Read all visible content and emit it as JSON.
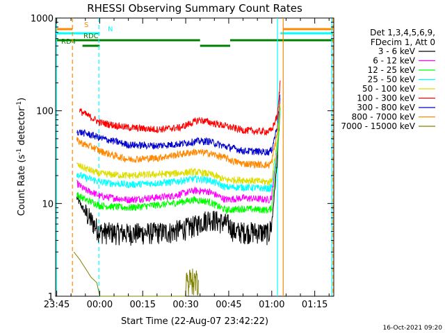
{
  "chart_data": {
    "type": "line",
    "title": "RHESSI Observing Summary Count Rates",
    "xlabel": "Start Time (22-Aug-07 23:42:22)",
    "ylabel_main": "Count Rate (s",
    "ylabel_sup1": "-1",
    "ylabel_mid": " detector",
    "ylabel_sup2": "-1",
    "ylabel_end": ")",
    "yscale": "log",
    "ylim": [
      1,
      1000
    ],
    "xlim_minutes": [
      -15.37,
      81.63
    ],
    "y_ticks": [
      {
        "value": 1,
        "label": "1"
      },
      {
        "value": 10,
        "label": "10"
      },
      {
        "value": 100,
        "label": "100"
      },
      {
        "value": 1000,
        "label": "1000"
      }
    ],
    "x_ticks": [
      {
        "value": -15,
        "label": "23:45"
      },
      {
        "value": 0,
        "label": "00:00"
      },
      {
        "value": 15,
        "label": "00:15"
      },
      {
        "value": 30,
        "label": "00:30"
      },
      {
        "value": 45,
        "label": "00:45"
      },
      {
        "value": 60,
        "label": "01:00"
      },
      {
        "value": 75,
        "label": "01:15"
      }
    ],
    "legend_header": [
      "Det 1,3,4,5,6,9,",
      "FDecim 1, Att 0"
    ],
    "series": [
      {
        "name": "3 - 6 keV",
        "color": "#000000",
        "points": [
          [
            -8,
            11.5
          ],
          [
            -5,
            8
          ],
          [
            -2,
            6
          ],
          [
            0,
            5
          ],
          [
            10,
            4.8
          ],
          [
            25,
            5
          ],
          [
            33,
            5.8
          ],
          [
            38,
            7
          ],
          [
            45,
            6
          ],
          [
            47,
            5
          ],
          [
            55,
            5
          ],
          [
            59,
            4.8
          ],
          [
            60,
            6
          ],
          [
            62,
            30
          ],
          [
            63,
            120
          ]
        ]
      },
      {
        "name": "6 - 12 keV",
        "color": "#ff00ff",
        "points": [
          [
            -8,
            16.5
          ],
          [
            -5,
            14
          ],
          [
            -2,
            13
          ],
          [
            0,
            12
          ],
          [
            10,
            11
          ],
          [
            25,
            12
          ],
          [
            33,
            13.8
          ],
          [
            38,
            13.5
          ],
          [
            44,
            11
          ],
          [
            50,
            11.5
          ],
          [
            59,
            11
          ],
          [
            60,
            12
          ],
          [
            62,
            40
          ],
          [
            63,
            150
          ]
        ]
      },
      {
        "name": "12 - 25 keV",
        "color": "#00ff00",
        "points": [
          [
            -8,
            12.5
          ],
          [
            -5,
            11
          ],
          [
            -2,
            10.2
          ],
          [
            0,
            9.5
          ],
          [
            10,
            9
          ],
          [
            25,
            10
          ],
          [
            33,
            11
          ],
          [
            38,
            10.5
          ],
          [
            44,
            8.5
          ],
          [
            50,
            8.8
          ],
          [
            59,
            8.5
          ],
          [
            60,
            9
          ],
          [
            62,
            35
          ],
          [
            63,
            130
          ]
        ]
      },
      {
        "name": "25 - 50 keV",
        "color": "#00ffff",
        "points": [
          [
            -8,
            21
          ],
          [
            -5,
            19
          ],
          [
            -2,
            18
          ],
          [
            0,
            17
          ],
          [
            10,
            16
          ],
          [
            25,
            17
          ],
          [
            33,
            18.5
          ],
          [
            38,
            18
          ],
          [
            44,
            15
          ],
          [
            50,
            15
          ],
          [
            59,
            14.5
          ],
          [
            60,
            15
          ],
          [
            62,
            45
          ],
          [
            63,
            150
          ]
        ]
      },
      {
        "name": "50 - 100 keV",
        "color": "#dddd00",
        "points": [
          [
            -8,
            26
          ],
          [
            -5,
            24
          ],
          [
            -2,
            22
          ],
          [
            0,
            21
          ],
          [
            10,
            20
          ],
          [
            25,
            21
          ],
          [
            33,
            22
          ],
          [
            38,
            21
          ],
          [
            44,
            18
          ],
          [
            50,
            18
          ],
          [
            59,
            17
          ],
          [
            60,
            18
          ],
          [
            62,
            50
          ],
          [
            63,
            160
          ]
        ]
      },
      {
        "name": "100 - 300 keV",
        "color": "#ff0000",
        "points": [
          [
            -7,
            100
          ],
          [
            -3,
            85
          ],
          [
            0,
            75
          ],
          [
            5,
            70
          ],
          [
            10,
            66
          ],
          [
            20,
            63
          ],
          [
            28,
            66
          ],
          [
            33,
            76
          ],
          [
            34.7,
            80
          ],
          [
            46,
            66
          ],
          [
            50,
            62
          ],
          [
            55,
            60
          ],
          [
            59,
            60
          ],
          [
            60,
            62
          ],
          [
            62,
            90
          ],
          [
            63,
            210
          ]
        ]
      },
      {
        "name": "300 - 800 keV",
        "color": "#0000cc",
        "points": [
          [
            -8,
            60
          ],
          [
            -5,
            57
          ],
          [
            -2,
            54
          ],
          [
            0,
            51
          ],
          [
            5,
            47
          ],
          [
            10,
            43
          ],
          [
            20,
            42
          ],
          [
            28,
            44
          ],
          [
            34,
            47
          ],
          [
            38,
            47
          ],
          [
            44,
            41
          ],
          [
            46,
            40
          ],
          [
            50,
            37
          ],
          [
            59,
            36
          ],
          [
            60,
            38
          ],
          [
            62,
            70
          ],
          [
            63,
            160
          ]
        ]
      },
      {
        "name": "800 - 7000 keV",
        "color": "#ff8800",
        "points": [
          [
            -8,
            48
          ],
          [
            -5,
            43
          ],
          [
            -2,
            40
          ],
          [
            0,
            37
          ],
          [
            5,
            33
          ],
          [
            10,
            30
          ],
          [
            20,
            31
          ],
          [
            28,
            34
          ],
          [
            33,
            36
          ],
          [
            38,
            35
          ],
          [
            44,
            31
          ],
          [
            46,
            29
          ],
          [
            50,
            27
          ],
          [
            59,
            26
          ],
          [
            60,
            28
          ],
          [
            62,
            60
          ],
          [
            63,
            140
          ]
        ]
      },
      {
        "name": "7000 - 15000 keV",
        "color": "#808000",
        "points": [
          [
            -9,
            3
          ],
          [
            -7,
            2.5
          ],
          [
            -5,
            2
          ],
          [
            -3,
            1.6
          ],
          [
            -1,
            1.4
          ],
          [
            0,
            1
          ],
          [
            35,
            1
          ],
          [
            34.5,
            1
          ]
        ]
      }
    ],
    "flag_bars": [
      {
        "label": "S",
        "color": "#ff8800",
        "segments": [
          [
            -15.37,
            -9.5
          ],
          [
            64,
            81.63
          ]
        ]
      },
      {
        "label": "N",
        "color": "#00ffff",
        "segments": [
          [
            -15.37,
            0
          ],
          [
            63,
            81.63
          ]
        ]
      },
      {
        "label": "RDC",
        "color": "#008000",
        "segments": [
          [
            -15.37,
            81.63
          ]
        ]
      },
      {
        "label": "RD4",
        "color": "#008000",
        "segments": [
          [
            -6,
            0
          ]
        ]
      }
    ],
    "vlines": [
      {
        "x": -15.0,
        "color": "#00ffff",
        "dash": false
      },
      {
        "x": -9.5,
        "color": "#ff8800",
        "dash": true
      },
      {
        "x": -0.3,
        "color": "#00ffff",
        "dash": true
      },
      {
        "x": 62.0,
        "color": "#00ffff",
        "dash": false
      },
      {
        "x": 64.0,
        "color": "#ff8800",
        "dash": false
      },
      {
        "x": 81.0,
        "color": "#00ffff",
        "dash": false
      },
      {
        "x": 81.4,
        "color": "#ff8800",
        "dash": true
      }
    ],
    "footer_date": "16-Oct-2021 09:20"
  }
}
